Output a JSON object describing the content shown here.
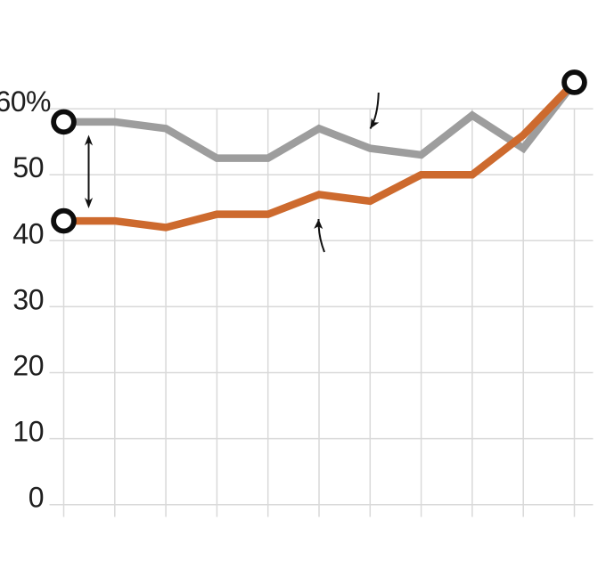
{
  "chart_data": {
    "type": "line",
    "title": "",
    "x": [
      1,
      2,
      3,
      4,
      5,
      6,
      7,
      8,
      9,
      10,
      11
    ],
    "x_tick_labels": [],
    "ylim": [
      0,
      66
    ],
    "grid": true,
    "legend": "none",
    "yticks": [
      {
        "value": 60,
        "label": "60%"
      },
      {
        "value": 50,
        "label": "50"
      },
      {
        "value": 40,
        "label": "40"
      },
      {
        "value": 30,
        "label": "30"
      },
      {
        "value": 20,
        "label": "20"
      },
      {
        "value": 10,
        "label": "10"
      },
      {
        "value": 0,
        "label": "0"
      }
    ],
    "series": [
      {
        "name": "upper-gray-line",
        "color": "#9d9d9d",
        "values": [
          58,
          58,
          57,
          52.5,
          52.5,
          57,
          54,
          53,
          59,
          54,
          64
        ]
      },
      {
        "name": "lower-orange-line",
        "color": "#cd6a2e",
        "values": [
          43,
          43,
          42,
          44,
          44,
          47,
          46,
          50,
          50,
          56,
          64
        ]
      }
    ],
    "point_markers": [
      {
        "name": "upper-start-marker",
        "series_index": 0,
        "x_index": 0
      },
      {
        "name": "lower-start-marker",
        "series_index": 1,
        "x_index": 0
      },
      {
        "name": "shared-end-marker",
        "series_index": 0,
        "x_index": 10
      }
    ],
    "marker_style": {
      "shape": "open-circle",
      "fill": "#ffffff",
      "stroke": "#0d0d0d"
    },
    "annotations": [
      {
        "id": "start-gap-double-arrow",
        "type": "double-headed-vertical-arrow"
      },
      {
        "id": "arrow-to-upper-line",
        "type": "curved-arrow-pointing-down"
      },
      {
        "id": "arrow-to-lower-line",
        "type": "curved-arrow-pointing-up"
      }
    ],
    "colors": {
      "grid": "#d9d9d9",
      "tick_text": "#1f1f1f",
      "annotation": "#111111"
    }
  }
}
